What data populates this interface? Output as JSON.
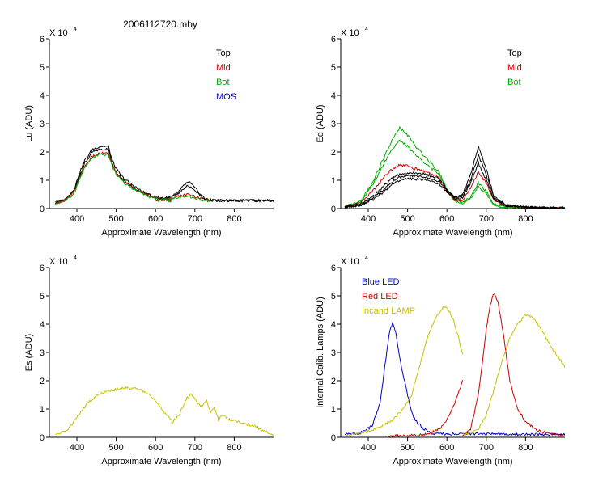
{
  "figure": {
    "title": "2006112720.mby"
  },
  "chart_data": [
    {
      "type": "line",
      "panel": "top-left",
      "ylabel": "Lu (ADU)",
      "xlabel": "Approximate Wavelength (nm)",
      "multiplier": "X 10",
      "exponent": "4",
      "xlim": [
        330,
        900
      ],
      "ylim": [
        0,
        6
      ],
      "xticks": [
        400,
        500,
        600,
        700,
        800
      ],
      "yticks": [
        0,
        1,
        2,
        3,
        4,
        5,
        6
      ],
      "legend_position": "top-right",
      "legend": [
        {
          "label": "Top",
          "color": "#000000"
        },
        {
          "label": "Mid",
          "color": "#cc0000"
        },
        {
          "label": "Bot",
          "color": "#00aa00"
        },
        {
          "label": "MOS",
          "color": "#0000aa"
        }
      ],
      "series": [
        {
          "name": "Top",
          "color": "#000000",
          "x": [
            345,
            370,
            385,
            395,
            405,
            420,
            440,
            460,
            480,
            490,
            500,
            520,
            540,
            560,
            580,
            600,
            620,
            640
          ],
          "y": [
            0.2,
            0.3,
            0.5,
            0.7,
            1.1,
            1.6,
            2.0,
            2.1,
            2.1,
            1.6,
            1.3,
            1.0,
            0.8,
            0.6,
            0.5,
            0.4,
            0.35,
            0.3
          ]
        },
        {
          "name": "Top",
          "color": "#000000",
          "x": [
            345,
            370,
            385,
            395,
            405,
            420,
            440,
            460,
            480,
            490,
            500,
            520,
            540,
            560,
            580,
            600,
            620,
            640
          ],
          "y": [
            0.2,
            0.3,
            0.55,
            0.75,
            1.2,
            1.7,
            2.1,
            2.2,
            2.2,
            1.7,
            1.4,
            1.05,
            0.85,
            0.65,
            0.5,
            0.4,
            0.35,
            0.3
          ]
        },
        {
          "name": "Mid",
          "color": "#cc0000",
          "x": [
            345,
            370,
            385,
            395,
            405,
            420,
            440,
            460,
            480,
            490,
            500,
            520,
            540,
            560,
            580,
            600,
            620,
            640
          ],
          "y": [
            0.2,
            0.28,
            0.45,
            0.65,
            1.0,
            1.5,
            1.85,
            1.95,
            1.95,
            1.55,
            1.25,
            0.95,
            0.75,
            0.6,
            0.45,
            0.38,
            0.32,
            0.28
          ]
        },
        {
          "name": "Bot",
          "color": "#00aa00",
          "x": [
            345,
            370,
            385,
            395,
            405,
            420,
            440,
            460,
            480,
            490,
            500,
            520,
            540,
            560,
            580,
            600,
            620,
            640
          ],
          "y": [
            0.18,
            0.27,
            0.42,
            0.62,
            0.98,
            1.45,
            1.8,
            1.9,
            1.9,
            1.5,
            1.2,
            0.92,
            0.72,
            0.58,
            0.44,
            0.36,
            0.3,
            0.26
          ]
        },
        {
          "name": "Top",
          "color": "#000000",
          "x": [
            600,
            630,
            650,
            665,
            680,
            695,
            710,
            725,
            740,
            760,
            800,
            860,
            900
          ],
          "y": [
            0.3,
            0.4,
            0.5,
            0.7,
            0.95,
            0.85,
            0.55,
            0.35,
            0.3,
            0.28,
            0.28,
            0.28,
            0.28
          ]
        },
        {
          "name": "Top",
          "color": "#000000",
          "x": [
            600,
            630,
            650,
            665,
            680,
            695,
            710,
            725,
            740,
            760,
            800,
            860,
            900
          ],
          "y": [
            0.3,
            0.38,
            0.45,
            0.6,
            0.8,
            0.72,
            0.5,
            0.33,
            0.3,
            0.28,
            0.28,
            0.28,
            0.28
          ]
        },
        {
          "name": "Mid",
          "color": "#cc0000",
          "x": [
            600,
            630,
            650,
            665,
            680,
            695,
            710,
            725,
            740
          ],
          "y": [
            0.28,
            0.35,
            0.4,
            0.45,
            0.5,
            0.45,
            0.38,
            0.3,
            0.28
          ]
        },
        {
          "name": "Bot",
          "color": "#00aa00",
          "x": [
            600,
            630,
            650,
            665,
            680,
            695,
            710,
            725,
            740
          ],
          "y": [
            0.27,
            0.33,
            0.37,
            0.41,
            0.43,
            0.4,
            0.33,
            0.28,
            0.26
          ]
        }
      ]
    },
    {
      "type": "line",
      "panel": "top-right",
      "ylabel": "Ed  (ADU)",
      "xlabel": "Approximate Wavelength (nm)",
      "multiplier": "X 10",
      "exponent": "4",
      "xlim": [
        330,
        900
      ],
      "ylim": [
        0,
        6
      ],
      "xticks": [
        400,
        500,
        600,
        700,
        800
      ],
      "yticks": [
        0,
        1,
        2,
        3,
        4,
        5,
        6
      ],
      "legend_position": "top-right",
      "legend": [
        {
          "label": "Top",
          "color": "#000000"
        },
        {
          "label": "Mid",
          "color": "#cc0000"
        },
        {
          "label": "Bot",
          "color": "#00aa00"
        }
      ],
      "series": [
        {
          "name": "Bot",
          "color": "#00aa00",
          "x": [
            340,
            380,
            410,
            440,
            460,
            480,
            500,
            520,
            550,
            580,
            600,
            620,
            640,
            660,
            680,
            700,
            720,
            750,
            800,
            850,
            900
          ],
          "y": [
            0.05,
            0.25,
            0.9,
            1.8,
            2.4,
            2.85,
            2.6,
            2.2,
            1.75,
            1.3,
            0.7,
            0.3,
            0.2,
            0.4,
            0.9,
            0.6,
            0.15,
            0.05,
            0.02,
            0.02,
            0.02
          ]
        },
        {
          "name": "Bot",
          "color": "#00aa00",
          "x": [
            340,
            380,
            410,
            440,
            460,
            480,
            500,
            520,
            550,
            580,
            600,
            620,
            640,
            660,
            680,
            700,
            720,
            750,
            800,
            850,
            900
          ],
          "y": [
            0.05,
            0.22,
            0.8,
            1.6,
            2.1,
            2.4,
            2.2,
            1.9,
            1.55,
            1.2,
            0.65,
            0.28,
            0.2,
            0.35,
            0.8,
            0.5,
            0.12,
            0.04,
            0.02,
            0.02,
            0.02
          ]
        },
        {
          "name": "Mid",
          "color": "#cc0000",
          "x": [
            340,
            380,
            410,
            440,
            460,
            480,
            500,
            520,
            550,
            580,
            600,
            620,
            640,
            660,
            680,
            700,
            720,
            750,
            800,
            850,
            900
          ],
          "y": [
            0.05,
            0.2,
            0.6,
            1.1,
            1.4,
            1.55,
            1.5,
            1.4,
            1.3,
            1.1,
            0.6,
            0.3,
            0.3,
            0.7,
            1.3,
            0.9,
            0.3,
            0.1,
            0.04,
            0.02,
            0.02
          ]
        },
        {
          "name": "Top",
          "color": "#000000",
          "x": [
            340,
            380,
            410,
            440,
            460,
            480,
            500,
            520,
            550,
            580,
            600,
            620,
            640,
            660,
            680,
            700,
            720,
            750,
            800,
            850,
            900
          ],
          "y": [
            0.05,
            0.15,
            0.4,
            0.8,
            1.05,
            1.2,
            1.25,
            1.25,
            1.2,
            1.05,
            0.7,
            0.4,
            0.5,
            1.2,
            2.2,
            1.4,
            0.4,
            0.12,
            0.05,
            0.02,
            0.02
          ]
        },
        {
          "name": "Top",
          "color": "#000000",
          "x": [
            340,
            380,
            410,
            440,
            460,
            480,
            500,
            520,
            550,
            580,
            600,
            620,
            640,
            660,
            680,
            700,
            720,
            750,
            800,
            850,
            900
          ],
          "y": [
            0.05,
            0.13,
            0.35,
            0.7,
            0.95,
            1.1,
            1.15,
            1.15,
            1.1,
            0.95,
            0.65,
            0.38,
            0.45,
            1.0,
            1.9,
            1.2,
            0.35,
            0.1,
            0.05,
            0.02,
            0.02
          ]
        },
        {
          "name": "Top",
          "color": "#000000",
          "x": [
            340,
            380,
            410,
            440,
            460,
            480,
            500,
            520,
            550,
            580,
            600,
            620,
            640,
            660,
            680,
            700,
            720,
            750,
            800,
            850,
            900
          ],
          "y": [
            0.05,
            0.12,
            0.3,
            0.6,
            0.85,
            1.0,
            1.05,
            1.05,
            1.0,
            0.88,
            0.6,
            0.35,
            0.4,
            0.9,
            1.6,
            1.0,
            0.3,
            0.1,
            0.05,
            0.02,
            0.02
          ]
        }
      ]
    },
    {
      "type": "line",
      "panel": "bottom-left",
      "ylabel": "Es  (ADU)",
      "xlabel": "Approximate Wavelength (nm)",
      "multiplier": "X 10",
      "exponent": "4",
      "xlim": [
        330,
        900
      ],
      "ylim": [
        0,
        6
      ],
      "xticks": [
        400,
        500,
        600,
        700,
        800
      ],
      "yticks": [
        0,
        1,
        2,
        3,
        4,
        5,
        6
      ],
      "series": [
        {
          "name": "Es",
          "color": "#c8c000",
          "x": [
            345,
            370,
            390,
            410,
            430,
            450,
            470,
            500,
            530,
            560,
            580,
            600,
            620,
            640
          ],
          "y": [
            0.1,
            0.2,
            0.5,
            0.9,
            1.25,
            1.45,
            1.6,
            1.7,
            1.75,
            1.7,
            1.55,
            1.3,
            0.9,
            0.6
          ]
        },
        {
          "name": "Es",
          "color": "#c8c000",
          "x": [
            640,
            660,
            680,
            690,
            700,
            715,
            730,
            740,
            750,
            760,
            770,
            790,
            820,
            850,
            880,
            900
          ],
          "y": [
            0.5,
            0.8,
            1.4,
            1.5,
            1.35,
            1.1,
            1.3,
            0.9,
            1.1,
            0.6,
            0.8,
            0.6,
            0.5,
            0.4,
            0.2,
            0.1
          ]
        }
      ]
    },
    {
      "type": "line",
      "panel": "bottom-right",
      "ylabel": "Internal Calib. Lamps (ADU)",
      "xlabel": "Approximate Wavelength (nm)",
      "multiplier": "X 10",
      "exponent": "4",
      "xlim": [
        330,
        900
      ],
      "ylim": [
        0,
        6
      ],
      "xticks": [
        400,
        500,
        600,
        700,
        800
      ],
      "yticks": [
        0,
        1,
        2,
        3,
        4,
        5,
        6
      ],
      "legend_position": "top-left",
      "legend": [
        {
          "label": "Blue LED",
          "color": "#0000cc"
        },
        {
          "label": "Red LED",
          "color": "#cc0000"
        },
        {
          "label": "Incand LAMP",
          "color": "#c8c000"
        }
      ],
      "series": [
        {
          "name": "Blue LED",
          "color": "#0000cc",
          "x": [
            340,
            380,
            410,
            430,
            445,
            455,
            462,
            470,
            480,
            490,
            500,
            510,
            520,
            540,
            560,
            580,
            600,
            650,
            700,
            750,
            800,
            850,
            900
          ],
          "y": [
            0.1,
            0.15,
            0.4,
            1.2,
            2.8,
            3.8,
            4.05,
            3.7,
            2.8,
            2.1,
            1.5,
            0.9,
            0.6,
            0.3,
            0.15,
            0.12,
            0.12,
            0.12,
            0.12,
            0.1,
            0.1,
            0.1,
            0.1
          ]
        },
        {
          "name": "Red LED",
          "color": "#cc0000",
          "x": [
            450,
            500,
            550,
            580,
            600,
            620,
            640
          ],
          "y": [
            0.05,
            0.05,
            0.1,
            0.3,
            0.6,
            1.2,
            2.0
          ]
        },
        {
          "name": "Red LED",
          "color": "#cc0000",
          "x": [
            640,
            660,
            680,
            700,
            710,
            720,
            730,
            745,
            760,
            780,
            800,
            830,
            860,
            900
          ],
          "y": [
            0.05,
            0.3,
            1.5,
            3.8,
            4.7,
            5.1,
            4.8,
            3.5,
            2.0,
            1.0,
            0.55,
            0.25,
            0.12,
            0.05
          ]
        },
        {
          "name": "Incand LAMP",
          "color": "#c8c000",
          "x": [
            345,
            380,
            420,
            460,
            490,
            510,
            530,
            550,
            570,
            590,
            600,
            615,
            630,
            640
          ],
          "y": [
            0.1,
            0.15,
            0.3,
            0.6,
            1.0,
            1.5,
            2.5,
            3.5,
            4.2,
            4.6,
            4.6,
            4.2,
            3.5,
            2.9
          ]
        },
        {
          "name": "Incand LAMP",
          "color": "#c8c000",
          "x": [
            640,
            660,
            680,
            700,
            720,
            740,
            760,
            780,
            800,
            820,
            840,
            860,
            880,
            900
          ],
          "y": [
            0.1,
            0.15,
            0.3,
            0.8,
            1.7,
            2.7,
            3.5,
            4.0,
            4.35,
            4.2,
            3.8,
            3.3,
            2.9,
            2.5
          ]
        }
      ]
    }
  ]
}
